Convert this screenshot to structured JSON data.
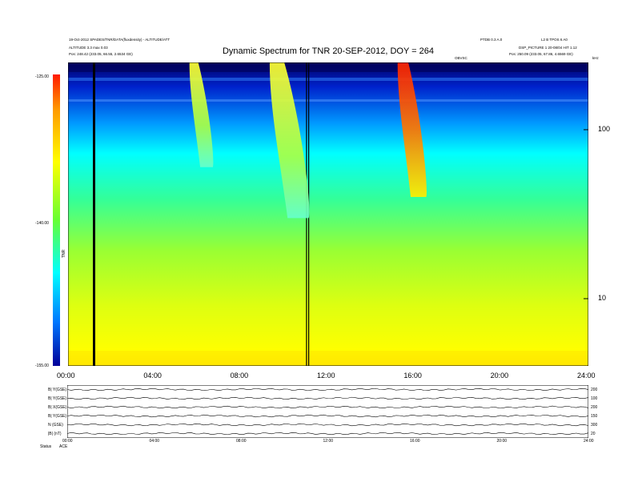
{
  "chart_data": {
    "type": "heatmap",
    "title": "Dynamic Spectrum for TNR 20-SEP-2012, DOY = 264",
    "header_left": [
      "19-Oct-2012 SPADES/TNR/DATA(fluxdensity) - ALTITUDE/ATT",
      "ALTITUDE 3.3 max 0.03",
      "Pos:    248.42 (233.05, 66.55, 2.6534 GE)"
    ],
    "header_right": [
      "PTDB 0.3 A.0",
      "L2 B TPOS 6 A0",
      "DSP_PICTURE 1 20-08/04 HIT 1.12",
      "Pos:   250.09 (233.05, 67.86, 4.6569 GE)"
    ],
    "corner_label": "kHz",
    "sun_label": "OBVSC",
    "colorbar": {
      "label": "TNR",
      "ticks": [
        "-125.00",
        "-140.00",
        "-155.00"
      ],
      "range": [
        -155,
        -125
      ],
      "colors": [
        "#000099",
        "#0077ff",
        "#00ffff",
        "#66ff33",
        "#ffff00",
        "#ff9900",
        "#ff1a00"
      ]
    },
    "x_axis": {
      "ticks": [
        "00:00",
        "04:00",
        "08:00",
        "12:00",
        "16:00",
        "20:00",
        "24:00"
      ],
      "range_hours": [
        0,
        24
      ]
    },
    "y_axis": {
      "scale": "log",
      "unit": "kHz",
      "range": [
        4,
        250
      ],
      "ticks": [
        {
          "value": 100,
          "label": "100"
        },
        {
          "value": 10,
          "label": "10"
        }
      ]
    },
    "features": [
      {
        "kind": "data gap",
        "time_hours": 1.2
      },
      {
        "kind": "data gap",
        "time_hours": 11.0
      },
      {
        "kind": "data gap",
        "time_hours": 11.1
      },
      {
        "kind": "type III burst",
        "time_start_hours": 15.2,
        "time_end_hours": 16.3,
        "freq_high_khz": 250,
        "freq_low_khz": 40
      },
      {
        "kind": "type III burst",
        "time_start_hours": 5.6,
        "time_end_hours": 6.5,
        "freq_high_khz": 250,
        "freq_low_khz": 60
      },
      {
        "kind": "type III burst",
        "time_start_hours": 9.3,
        "time_end_hours": 10.8,
        "freq_high_khz": 250,
        "freq_low_khz": 30
      }
    ],
    "bottom_panel": {
      "rows": [
        {
          "label": "B| Y(GSE)",
          "right_tick": "200"
        },
        {
          "label": "B| Y(GSE)",
          "right_tick": "100"
        },
        {
          "label": "B| X(GSE)",
          "right_tick": "200"
        },
        {
          "label": "B| Y(GSE)",
          "right_tick": "150"
        },
        {
          "label": "N (GSE)",
          "right_tick": "300"
        },
        {
          "label": "|B| (nT)",
          "right_tick": "20"
        }
      ],
      "x_ticks": [
        "00:00",
        "04:00",
        "08:00",
        "12:00",
        "16:00",
        "20:00",
        "24:00"
      ],
      "footer_label": "Status",
      "footer_value": "ACE"
    }
  }
}
